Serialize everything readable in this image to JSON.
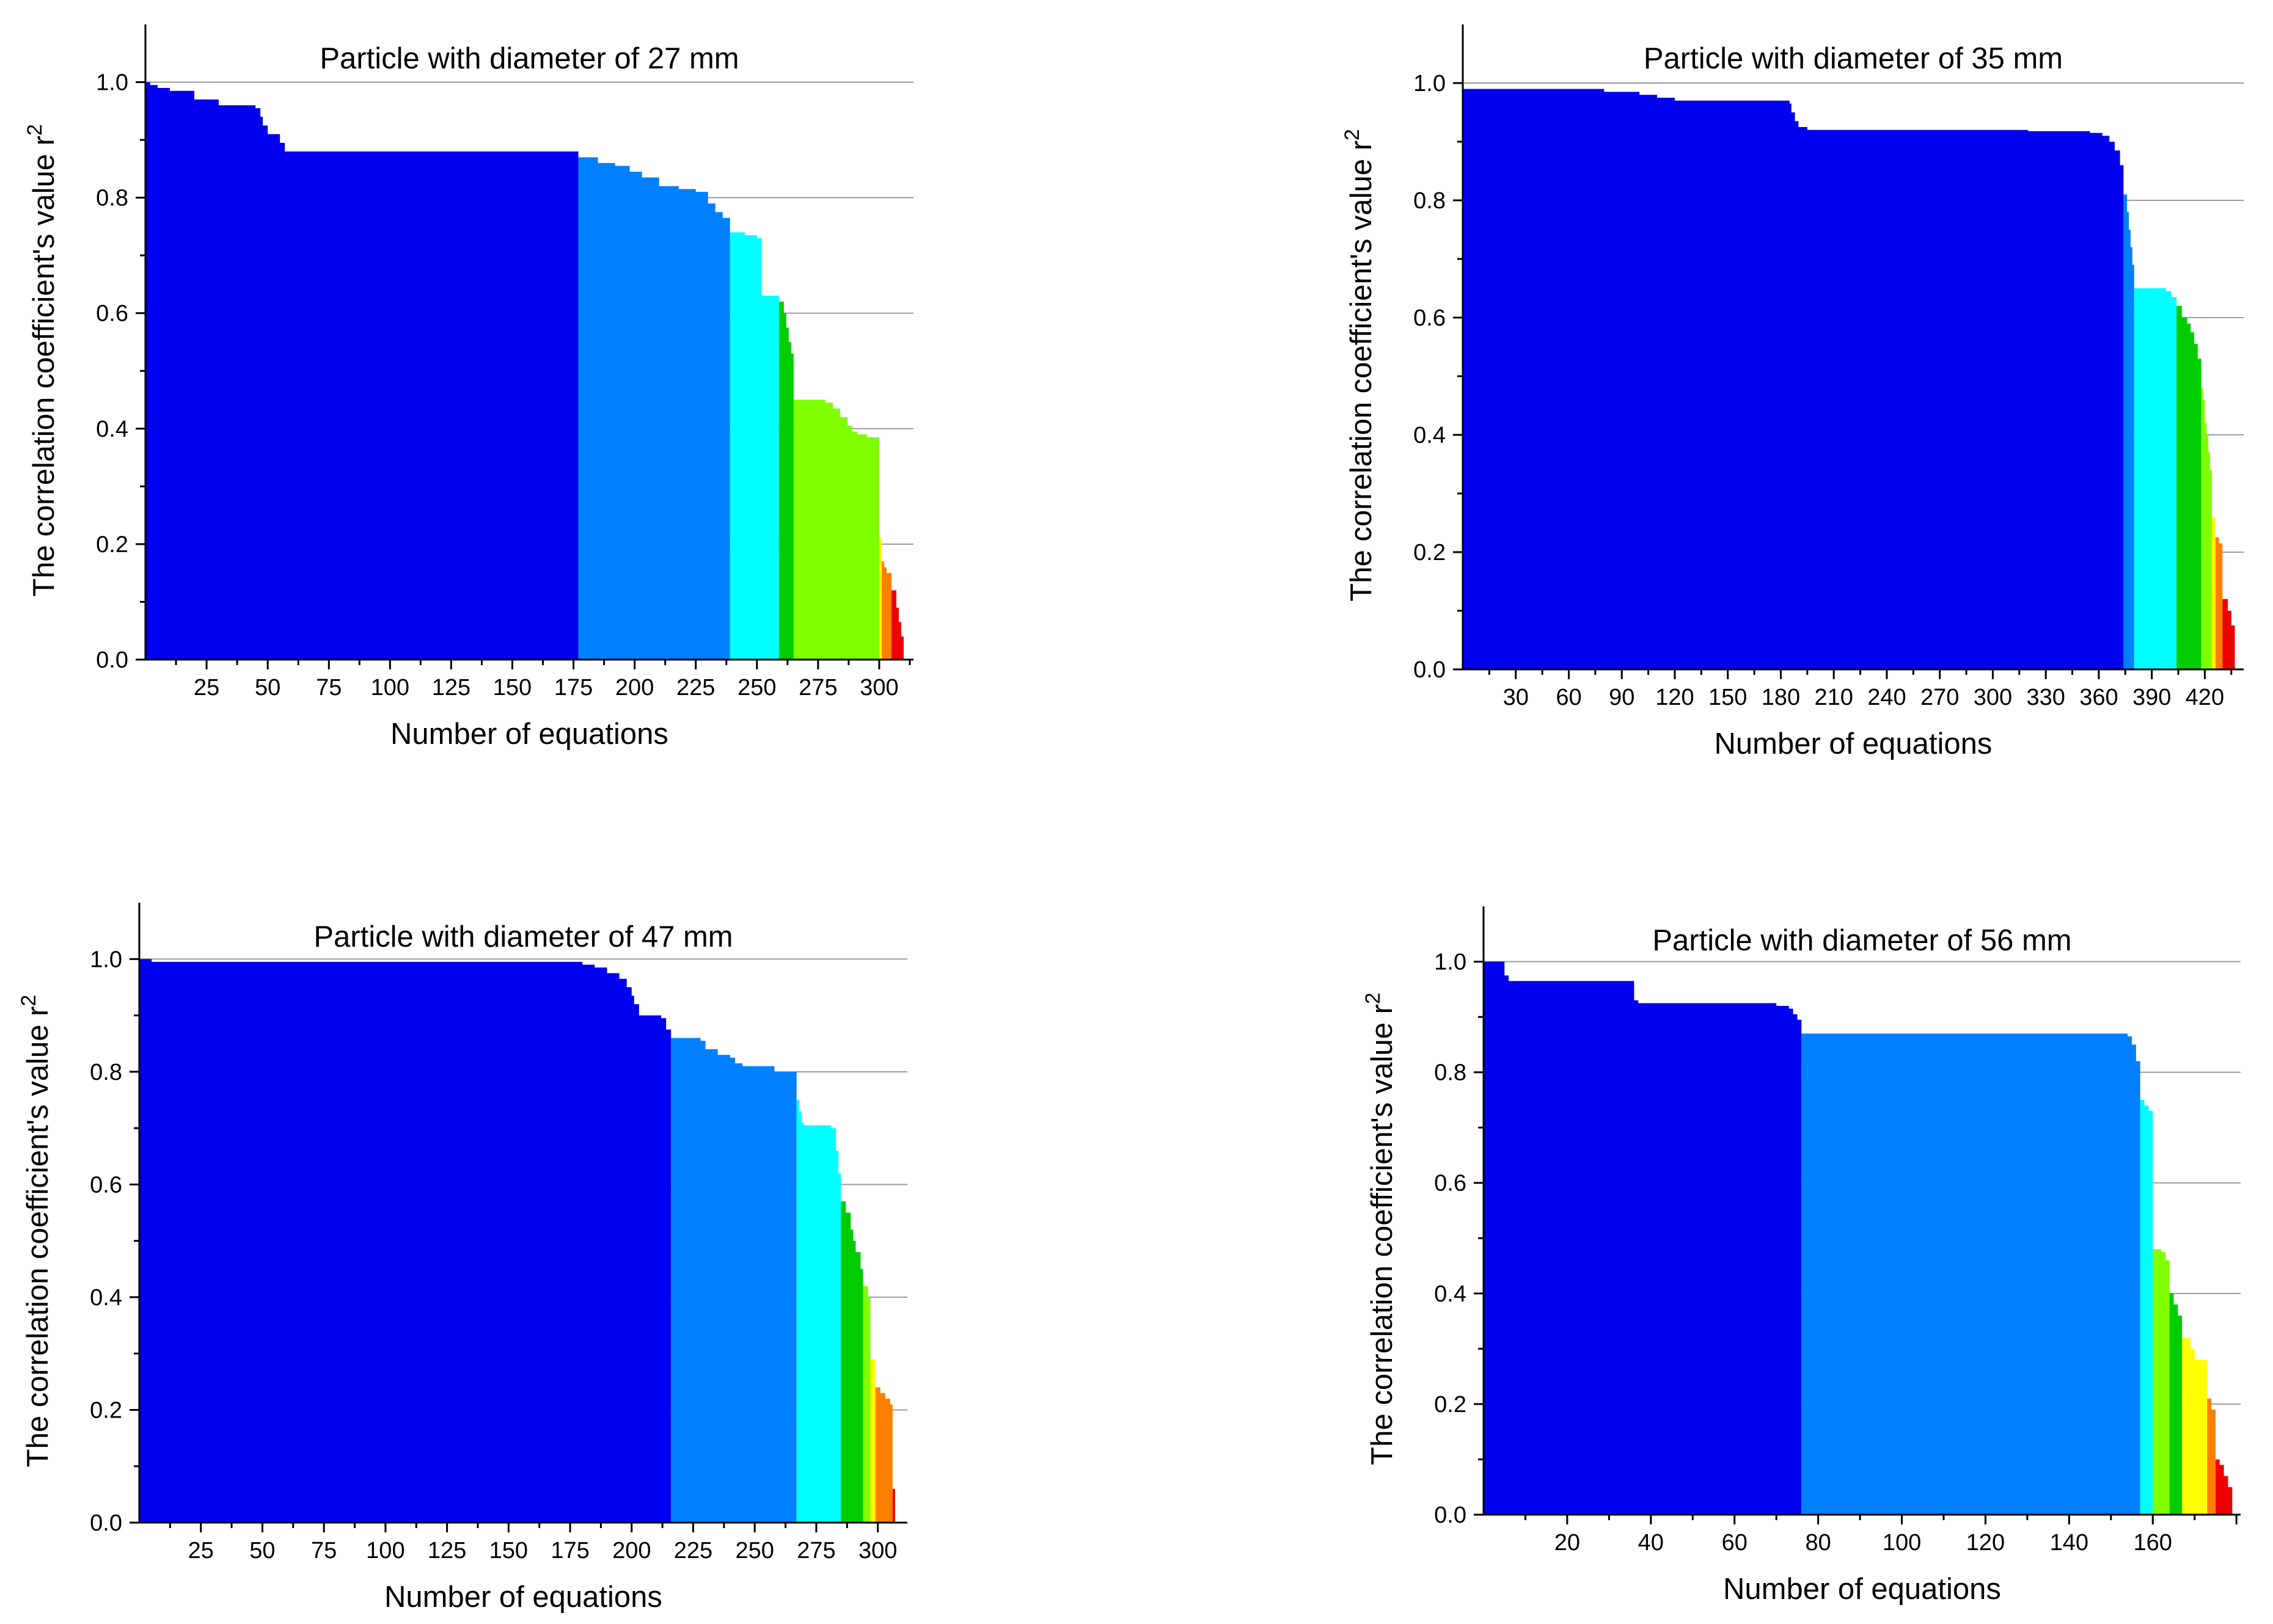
{
  "palette": {
    "blue": "#0000ee",
    "lightblue": "#0080ff",
    "cyan": "#00ffff",
    "green": "#00cc00",
    "lime": "#80ff00",
    "yellow": "#ffff00",
    "orange": "#ff8000",
    "red": "#ee0000",
    "grid": "#9a9a9a"
  },
  "chart_data": [
    {
      "type": "bar",
      "title": "Particle with diameter of 27 mm",
      "xlabel": "Number of equations",
      "ylabel": "The correlation coefficient's value r",
      "ylabel_sup": "2",
      "xlim": [
        0,
        314
      ],
      "ylim": [
        0,
        1.1
      ],
      "xticks": [
        25,
        50,
        75,
        100,
        125,
        150,
        175,
        200,
        225,
        250,
        275,
        300
      ],
      "yticks": [
        0.0,
        0.2,
        0.4,
        0.6,
        0.8,
        1.0
      ],
      "grid": true,
      "segments": [
        {
          "color": "blue",
          "points": [
            [
              0,
              1.0
            ],
            [
              2,
              0.995
            ],
            [
              5,
              0.99
            ],
            [
              10,
              0.985
            ],
            [
              20,
              0.97
            ],
            [
              30,
              0.96
            ],
            [
              45,
              0.955
            ],
            [
              47,
              0.94
            ],
            [
              48,
              0.925
            ],
            [
              50,
              0.91
            ],
            [
              55,
              0.895
            ],
            [
              57,
              0.88
            ],
            [
              177,
              0.875
            ]
          ]
        },
        {
          "color": "lightblue",
          "points": [
            [
              177,
              0.87
            ],
            [
              185,
              0.86
            ],
            [
              192,
              0.855
            ],
            [
              198,
              0.845
            ],
            [
              203,
              0.835
            ],
            [
              210,
              0.82
            ],
            [
              218,
              0.815
            ],
            [
              225,
              0.81
            ],
            [
              230,
              0.79
            ],
            [
              233,
              0.775
            ],
            [
              236,
              0.765
            ],
            [
              239,
              0.75
            ]
          ]
        },
        {
          "color": "cyan",
          "points": [
            [
              239,
              0.74
            ],
            [
              245,
              0.735
            ],
            [
              250,
              0.73
            ],
            [
              252,
              0.63
            ],
            [
              259,
              0.63
            ]
          ]
        },
        {
          "color": "green",
          "points": [
            [
              259,
              0.62
            ],
            [
              261,
              0.6
            ],
            [
              262,
              0.575
            ],
            [
              263,
              0.55
            ],
            [
              264,
              0.53
            ],
            [
              265,
              0.51
            ]
          ]
        },
        {
          "color": "lime",
          "points": [
            [
              265,
              0.45
            ],
            [
              278,
              0.445
            ],
            [
              281,
              0.435
            ],
            [
              284,
              0.42
            ],
            [
              287,
              0.405
            ],
            [
              289,
              0.395
            ],
            [
              291,
              0.39
            ],
            [
              295,
              0.385
            ],
            [
              300,
              0.37
            ]
          ]
        },
        {
          "color": "yellow",
          "points": [
            [
              300,
              0.21
            ],
            [
              301,
              0.19
            ]
          ]
        },
        {
          "color": "orange",
          "points": [
            [
              301,
              0.17
            ],
            [
              302,
              0.16
            ],
            [
              303,
              0.15
            ],
            [
              305,
              0.125
            ]
          ]
        },
        {
          "color": "red",
          "points": [
            [
              305,
              0.12
            ],
            [
              307,
              0.09
            ],
            [
              308,
              0.065
            ],
            [
              309,
              0.04
            ],
            [
              310,
              0.02
            ]
          ]
        }
      ]
    },
    {
      "type": "bar",
      "title": "Particle with diameter of 35 mm",
      "xlabel": "Number of equations",
      "ylabel": "The correlation coefficient's value r",
      "ylabel_sup": "2",
      "xlim": [
        0,
        442
      ],
      "ylim": [
        0,
        1.1
      ],
      "xticks": [
        30,
        60,
        90,
        120,
        150,
        180,
        210,
        240,
        270,
        300,
        330,
        360,
        390,
        420
      ],
      "yticks": [
        0.0,
        0.2,
        0.4,
        0.6,
        0.8,
        1.0
      ],
      "grid": true,
      "segments": [
        {
          "color": "blue",
          "points": [
            [
              0,
              0.99
            ],
            [
              40,
              0.99
            ],
            [
              80,
              0.985
            ],
            [
              100,
              0.98
            ],
            [
              110,
              0.975
            ],
            [
              120,
              0.97
            ],
            [
              175,
              0.97
            ],
            [
              185,
              0.965
            ],
            [
              186,
              0.95
            ],
            [
              188,
              0.935
            ],
            [
              190,
              0.925
            ],
            [
              195,
              0.92
            ],
            [
              320,
              0.918
            ],
            [
              355,
              0.915
            ],
            [
              362,
              0.91
            ],
            [
              366,
              0.9
            ],
            [
              369,
              0.885
            ],
            [
              372,
              0.86
            ],
            [
              374,
              0.83
            ]
          ]
        },
        {
          "color": "lightblue",
          "points": [
            [
              374,
              0.81
            ],
            [
              376,
              0.78
            ],
            [
              377,
              0.75
            ],
            [
              378,
              0.72
            ],
            [
              379,
              0.69
            ],
            [
              380,
              0.66
            ]
          ]
        },
        {
          "color": "cyan",
          "points": [
            [
              380,
              0.65
            ],
            [
              392,
              0.65
            ],
            [
              398,
              0.645
            ],
            [
              401,
              0.635
            ],
            [
              404,
              0.625
            ]
          ]
        },
        {
          "color": "green",
          "points": [
            [
              404,
              0.62
            ],
            [
              407,
              0.6
            ],
            [
              410,
              0.59
            ],
            [
              412,
              0.575
            ],
            [
              414,
              0.555
            ],
            [
              416,
              0.53
            ],
            [
              418,
              0.5
            ]
          ]
        },
        {
          "color": "lime",
          "points": [
            [
              418,
              0.48
            ],
            [
              419,
              0.46
            ],
            [
              420,
              0.42
            ],
            [
              421,
              0.4
            ],
            [
              422,
              0.37
            ],
            [
              423,
              0.34
            ],
            [
              424,
              0.3
            ]
          ]
        },
        {
          "color": "yellow",
          "points": [
            [
              424,
              0.26
            ],
            [
              426,
              0.24
            ]
          ]
        },
        {
          "color": "orange",
          "points": [
            [
              426,
              0.225
            ],
            [
              428,
              0.215
            ],
            [
              430,
              0.2
            ]
          ]
        },
        {
          "color": "red",
          "points": [
            [
              430,
              0.12
            ],
            [
              433,
              0.1
            ],
            [
              435,
              0.075
            ],
            [
              437,
              0.05
            ]
          ]
        }
      ]
    },
    {
      "type": "bar",
      "title": "Particle with diameter of 47 mm",
      "xlabel": "Number of equations",
      "ylabel": "The correlation coefficient's value r",
      "ylabel_sup": "2",
      "xlim": [
        0,
        312
      ],
      "ylim": [
        0,
        1.1
      ],
      "xticks": [
        25,
        50,
        75,
        100,
        125,
        150,
        175,
        200,
        225,
        250,
        275,
        300
      ],
      "yticks": [
        0.0,
        0.2,
        0.4,
        0.6,
        0.8,
        1.0
      ],
      "grid": true,
      "segments": [
        {
          "color": "blue",
          "points": [
            [
              0,
              1.0
            ],
            [
              5,
              0.995
            ],
            [
              100,
              0.995
            ],
            [
              175,
              0.995
            ],
            [
              180,
              0.99
            ],
            [
              185,
              0.985
            ],
            [
              190,
              0.975
            ],
            [
              195,
              0.965
            ],
            [
              198,
              0.95
            ],
            [
              200,
              0.935
            ],
            [
              201,
              0.92
            ],
            [
              203,
              0.9
            ],
            [
              212,
              0.895
            ],
            [
              214,
              0.875
            ],
            [
              216,
              0.86
            ]
          ]
        },
        {
          "color": "lightblue",
          "points": [
            [
              216,
              0.86
            ],
            [
              228,
              0.855
            ],
            [
              230,
              0.84
            ],
            [
              235,
              0.83
            ],
            [
              240,
              0.825
            ],
            [
              242,
              0.815
            ],
            [
              245,
              0.81
            ],
            [
              258,
              0.8
            ],
            [
              267,
              0.79
            ]
          ]
        },
        {
          "color": "cyan",
          "points": [
            [
              267,
              0.75
            ],
            [
              268,
              0.73
            ],
            [
              269,
              0.71
            ],
            [
              270,
              0.705
            ],
            [
              281,
              0.7
            ],
            [
              283,
              0.66
            ],
            [
              284,
              0.62
            ],
            [
              285,
              0.58
            ]
          ]
        },
        {
          "color": "green",
          "points": [
            [
              285,
              0.57
            ],
            [
              287,
              0.55
            ],
            [
              289,
              0.52
            ],
            [
              290,
              0.5
            ],
            [
              291,
              0.48
            ],
            [
              293,
              0.45
            ],
            [
              294,
              0.43
            ]
          ]
        },
        {
          "color": "lime",
          "points": [
            [
              294,
              0.42
            ],
            [
              296,
              0.4
            ],
            [
              297,
              0.38
            ]
          ]
        },
        {
          "color": "yellow",
          "points": [
            [
              297,
              0.29
            ],
            [
              299,
              0.27
            ]
          ]
        },
        {
          "color": "orange",
          "points": [
            [
              299,
              0.24
            ],
            [
              301,
              0.23
            ],
            [
              303,
              0.22
            ],
            [
              305,
              0.21
            ],
            [
              306,
              0.19
            ]
          ]
        },
        {
          "color": "red",
          "points": [
            [
              306,
              0.06
            ],
            [
              307,
              0.06
            ]
          ]
        }
      ]
    },
    {
      "type": "bar",
      "title": "Particle with diameter of 56 mm",
      "xlabel": "Number of equations",
      "ylabel": "The correlation coefficient's value r",
      "ylabel_sup": "2",
      "xlim": [
        0,
        181
      ],
      "ylim": [
        0,
        1.1
      ],
      "xticks": [
        20,
        40,
        60,
        80,
        100,
        120,
        140,
        160
      ],
      "yticks": [
        0.0,
        0.2,
        0.4,
        0.6,
        0.8,
        1.0
      ],
      "grid": true,
      "segments": [
        {
          "color": "blue",
          "points": [
            [
              0,
              1.0
            ],
            [
              5,
              0.975
            ],
            [
              6,
              0.965
            ],
            [
              35,
              0.965
            ],
            [
              36,
              0.93
            ],
            [
              37,
              0.925
            ],
            [
              70,
              0.92
            ],
            [
              73,
              0.915
            ],
            [
              74,
              0.905
            ],
            [
              75,
              0.895
            ],
            [
              76,
              0.88
            ]
          ]
        },
        {
          "color": "lightblue",
          "points": [
            [
              76,
              0.87
            ],
            [
              152,
              0.87
            ],
            [
              154,
              0.865
            ],
            [
              155,
              0.85
            ],
            [
              156,
              0.82
            ],
            [
              157,
              0.77
            ]
          ]
        },
        {
          "color": "cyan",
          "points": [
            [
              157,
              0.75
            ],
            [
              158,
              0.74
            ],
            [
              159,
              0.73
            ],
            [
              160,
              0.48
            ]
          ]
        },
        {
          "color": "lime",
          "points": [
            [
              160,
              0.48
            ],
            [
              162,
              0.475
            ],
            [
              163,
              0.46
            ],
            [
              164,
              0.42
            ]
          ]
        },
        {
          "color": "green",
          "points": [
            [
              164,
              0.4
            ],
            [
              165,
              0.38
            ],
            [
              166,
              0.36
            ],
            [
              167,
              0.34
            ]
          ]
        },
        {
          "color": "yellow",
          "points": [
            [
              167,
              0.32
            ],
            [
              169,
              0.3
            ],
            [
              170,
              0.28
            ],
            [
              173,
              0.27
            ]
          ]
        },
        {
          "color": "orange",
          "points": [
            [
              173,
              0.21
            ],
            [
              174,
              0.19
            ],
            [
              175,
              0.165
            ]
          ]
        },
        {
          "color": "red",
          "points": [
            [
              175,
              0.1
            ],
            [
              176,
              0.09
            ],
            [
              177,
              0.07
            ],
            [
              178,
              0.05
            ],
            [
              179,
              0.02
            ]
          ]
        }
      ]
    }
  ]
}
